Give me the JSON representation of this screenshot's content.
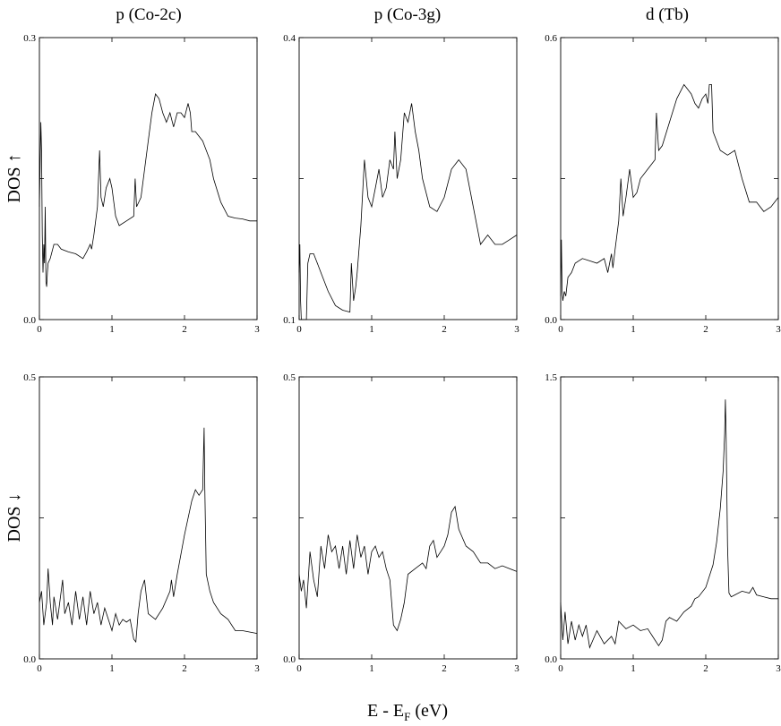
{
  "figure": {
    "column_titles": [
      "p (Co-2c)",
      "p (Co-3g)",
      "d (Tb)"
    ],
    "row_labels": [
      "DOS ↑",
      "DOS ↓"
    ],
    "xlabel": "E - E",
    "xlabel_sub": "F",
    "xlabel_unit": " (eV)"
  },
  "chart_data": [
    {
      "type": "line",
      "title": "p (Co-2c)",
      "ylabel": "DOS ↑",
      "xlim": [
        0,
        3
      ],
      "ylim": [
        0.0,
        0.3
      ],
      "xticks": [
        "0",
        "1",
        "2",
        "3"
      ],
      "ylim_labels": [
        "0.0",
        "0.3"
      ],
      "x": [
        0,
        0.02,
        0.03,
        0.04,
        0.05,
        0.06,
        0.07,
        0.08,
        0.09,
        0.1,
        0.11,
        0.12,
        0.15,
        0.2,
        0.25,
        0.3,
        0.4,
        0.5,
        0.6,
        0.65,
        0.7,
        0.72,
        0.75,
        0.8,
        0.83,
        0.85,
        0.88,
        0.92,
        0.97,
        1.0,
        1.05,
        1.1,
        1.2,
        1.3,
        1.32,
        1.34,
        1.4,
        1.5,
        1.55,
        1.6,
        1.65,
        1.7,
        1.75,
        1.8,
        1.85,
        1.9,
        1.95,
        2.0,
        2.05,
        2.08,
        2.1,
        2.15,
        2.2,
        2.25,
        2.3,
        2.35,
        2.4,
        2.5,
        2.6,
        2.7,
        2.8,
        2.9,
        3.0
      ],
      "series": [
        {
          "values": [
            0.12,
            0.21,
            0.18,
            0.09,
            0.05,
            0.08,
            0.06,
            0.12,
            0.04,
            0.035,
            0.05,
            0.06,
            0.065,
            0.08,
            0.08,
            0.075,
            0.072,
            0.07,
            0.065,
            0.072,
            0.08,
            0.075,
            0.09,
            0.12,
            0.18,
            0.13,
            0.12,
            0.14,
            0.15,
            0.14,
            0.11,
            0.1,
            0.105,
            0.11,
            0.15,
            0.12,
            0.13,
            0.19,
            0.22,
            0.24,
            0.235,
            0.22,
            0.21,
            0.22,
            0.205,
            0.22,
            0.22,
            0.215,
            0.23,
            0.22,
            0.2,
            0.2,
            0.195,
            0.19,
            0.18,
            0.17,
            0.15,
            0.125,
            0.11,
            0.108,
            0.107,
            0.105,
            0.105
          ]
        }
      ]
    },
    {
      "type": "line",
      "title": "p (Co-3g)",
      "ylabel": "",
      "xlim": [
        0,
        3
      ],
      "ylim": [
        0.1,
        0.4
      ],
      "xticks": [
        "0",
        "1",
        "2",
        "3"
      ],
      "ylim_labels": [
        "0.1",
        "0.4"
      ],
      "x": [
        0,
        0.01,
        0.02,
        0.03,
        0.05,
        0.08,
        0.1,
        0.12,
        0.15,
        0.2,
        0.25,
        0.3,
        0.4,
        0.5,
        0.6,
        0.7,
        0.72,
        0.75,
        0.78,
        0.8,
        0.85,
        0.9,
        0.95,
        1.0,
        1.05,
        1.1,
        1.15,
        1.2,
        1.25,
        1.3,
        1.32,
        1.35,
        1.4,
        1.45,
        1.5,
        1.55,
        1.6,
        1.65,
        1.7,
        1.8,
        1.9,
        2.0,
        2.1,
        2.2,
        2.3,
        2.4,
        2.5,
        2.6,
        2.7,
        2.8,
        2.9,
        3.0
      ],
      "series": [
        {
          "values": [
            0.15,
            0.18,
            0.12,
            0.1,
            0.1,
            0.1,
            0.1,
            0.16,
            0.17,
            0.17,
            0.16,
            0.15,
            0.13,
            0.115,
            0.11,
            0.108,
            0.16,
            0.12,
            0.135,
            0.15,
            0.2,
            0.27,
            0.23,
            0.22,
            0.24,
            0.26,
            0.23,
            0.24,
            0.27,
            0.26,
            0.3,
            0.25,
            0.27,
            0.32,
            0.31,
            0.33,
            0.3,
            0.28,
            0.25,
            0.22,
            0.215,
            0.23,
            0.26,
            0.27,
            0.26,
            0.22,
            0.18,
            0.19,
            0.18,
            0.18,
            0.185,
            0.19
          ]
        }
      ]
    },
    {
      "type": "line",
      "title": "d (Tb)",
      "ylabel": "",
      "xlim": [
        0,
        3
      ],
      "ylim": [
        0.0,
        0.6
      ],
      "xticks": [
        "0",
        "1",
        "2",
        "3"
      ],
      "ylim_labels": [
        "0.0",
        "0.6"
      ],
      "x": [
        0,
        0.01,
        0.02,
        0.03,
        0.05,
        0.07,
        0.1,
        0.15,
        0.2,
        0.3,
        0.4,
        0.5,
        0.6,
        0.65,
        0.7,
        0.72,
        0.75,
        0.8,
        0.83,
        0.86,
        0.9,
        0.95,
        1.0,
        1.05,
        1.1,
        1.2,
        1.3,
        1.32,
        1.35,
        1.4,
        1.5,
        1.6,
        1.7,
        1.75,
        1.8,
        1.85,
        1.9,
        1.95,
        2.0,
        2.03,
        2.05,
        2.08,
        2.1,
        2.15,
        2.2,
        2.3,
        2.4,
        2.5,
        2.6,
        2.7,
        2.8,
        2.9,
        3.0
      ],
      "series": [
        {
          "values": [
            0.05,
            0.17,
            0.06,
            0.04,
            0.06,
            0.05,
            0.09,
            0.1,
            0.12,
            0.13,
            0.125,
            0.12,
            0.13,
            0.1,
            0.14,
            0.11,
            0.15,
            0.21,
            0.3,
            0.22,
            0.26,
            0.32,
            0.26,
            0.27,
            0.3,
            0.32,
            0.34,
            0.44,
            0.36,
            0.37,
            0.42,
            0.47,
            0.5,
            0.49,
            0.48,
            0.46,
            0.45,
            0.47,
            0.48,
            0.46,
            0.5,
            0.5,
            0.4,
            0.38,
            0.36,
            0.35,
            0.36,
            0.3,
            0.25,
            0.25,
            0.23,
            0.24,
            0.26
          ]
        }
      ]
    },
    {
      "type": "line",
      "title": "",
      "ylabel": "DOS ↓",
      "xlim": [
        0,
        3
      ],
      "ylim": [
        0.0,
        0.5
      ],
      "xticks": [
        "0",
        "1",
        "2",
        "3"
      ],
      "ylim_labels": [
        "0.0",
        "0.5"
      ],
      "x": [
        0,
        0.03,
        0.06,
        0.1,
        0.12,
        0.15,
        0.18,
        0.2,
        0.25,
        0.3,
        0.32,
        0.35,
        0.4,
        0.45,
        0.5,
        0.55,
        0.6,
        0.65,
        0.7,
        0.75,
        0.8,
        0.85,
        0.9,
        0.95,
        1.0,
        1.05,
        1.1,
        1.15,
        1.2,
        1.25,
        1.3,
        1.33,
        1.36,
        1.4,
        1.45,
        1.5,
        1.6,
        1.7,
        1.8,
        1.82,
        1.85,
        1.9,
        2.0,
        2.1,
        2.15,
        2.2,
        2.25,
        2.27,
        2.28,
        2.3,
        2.35,
        2.4,
        2.5,
        2.6,
        2.7,
        2.8,
        3.0
      ],
      "series": [
        {
          "values": [
            0.1,
            0.12,
            0.06,
            0.1,
            0.16,
            0.1,
            0.06,
            0.11,
            0.07,
            0.12,
            0.14,
            0.08,
            0.1,
            0.06,
            0.12,
            0.07,
            0.11,
            0.06,
            0.12,
            0.08,
            0.1,
            0.06,
            0.09,
            0.07,
            0.05,
            0.08,
            0.06,
            0.07,
            0.065,
            0.07,
            0.035,
            0.03,
            0.08,
            0.12,
            0.14,
            0.08,
            0.07,
            0.09,
            0.12,
            0.14,
            0.11,
            0.15,
            0.22,
            0.28,
            0.3,
            0.29,
            0.3,
            0.41,
            0.3,
            0.15,
            0.12,
            0.1,
            0.08,
            0.07,
            0.05,
            0.05,
            0.045
          ]
        }
      ]
    },
    {
      "type": "line",
      "title": "",
      "ylabel": "",
      "xlim": [
        0,
        3
      ],
      "ylim": [
        0.0,
        0.5
      ],
      "xticks": [
        "0",
        "1",
        "2",
        "3"
      ],
      "ylim_labels": [
        "0.0",
        "0.5"
      ],
      "x": [
        0,
        0.03,
        0.06,
        0.1,
        0.15,
        0.2,
        0.25,
        0.3,
        0.35,
        0.4,
        0.45,
        0.5,
        0.55,
        0.6,
        0.65,
        0.7,
        0.75,
        0.8,
        0.85,
        0.9,
        0.95,
        1.0,
        1.05,
        1.1,
        1.15,
        1.2,
        1.25,
        1.3,
        1.35,
        1.4,
        1.45,
        1.5,
        1.6,
        1.7,
        1.75,
        1.8,
        1.85,
        1.9,
        1.95,
        2.0,
        2.05,
        2.1,
        2.15,
        2.2,
        2.3,
        2.4,
        2.5,
        2.6,
        2.7,
        2.8,
        2.9,
        3.0
      ],
      "series": [
        {
          "values": [
            0.15,
            0.12,
            0.14,
            0.09,
            0.19,
            0.14,
            0.11,
            0.2,
            0.16,
            0.22,
            0.19,
            0.2,
            0.16,
            0.2,
            0.15,
            0.21,
            0.16,
            0.22,
            0.18,
            0.2,
            0.15,
            0.19,
            0.2,
            0.18,
            0.19,
            0.16,
            0.14,
            0.06,
            0.05,
            0.07,
            0.1,
            0.15,
            0.16,
            0.17,
            0.16,
            0.2,
            0.21,
            0.18,
            0.19,
            0.2,
            0.22,
            0.26,
            0.27,
            0.23,
            0.2,
            0.19,
            0.17,
            0.17,
            0.16,
            0.165,
            0.16,
            0.155
          ]
        }
      ]
    },
    {
      "type": "line",
      "title": "",
      "ylabel": "",
      "xlim": [
        0,
        3
      ],
      "ylim": [
        0.0,
        1.5
      ],
      "xticks": [
        "0",
        "1",
        "2",
        "3"
      ],
      "ylim_labels": [
        "0.0",
        "1.5"
      ],
      "x": [
        0,
        0.03,
        0.06,
        0.1,
        0.15,
        0.2,
        0.25,
        0.3,
        0.35,
        0.4,
        0.5,
        0.6,
        0.7,
        0.75,
        0.8,
        0.9,
        1.0,
        1.1,
        1.2,
        1.3,
        1.35,
        1.4,
        1.45,
        1.5,
        1.6,
        1.7,
        1.8,
        1.85,
        1.9,
        2.0,
        2.1,
        2.15,
        2.2,
        2.24,
        2.26,
        2.27,
        2.28,
        2.3,
        2.32,
        2.35,
        2.4,
        2.5,
        2.6,
        2.65,
        2.7,
        2.8,
        2.9,
        3.0
      ],
      "series": [
        {
          "values": [
            0.3,
            0.1,
            0.25,
            0.08,
            0.2,
            0.1,
            0.18,
            0.12,
            0.18,
            0.06,
            0.15,
            0.08,
            0.12,
            0.08,
            0.2,
            0.16,
            0.18,
            0.15,
            0.16,
            0.1,
            0.07,
            0.1,
            0.2,
            0.22,
            0.2,
            0.25,
            0.28,
            0.32,
            0.33,
            0.38,
            0.5,
            0.62,
            0.8,
            1.0,
            1.2,
            1.38,
            1.2,
            0.6,
            0.35,
            0.33,
            0.34,
            0.36,
            0.35,
            0.38,
            0.34,
            0.33,
            0.32,
            0.32
          ]
        }
      ]
    }
  ]
}
